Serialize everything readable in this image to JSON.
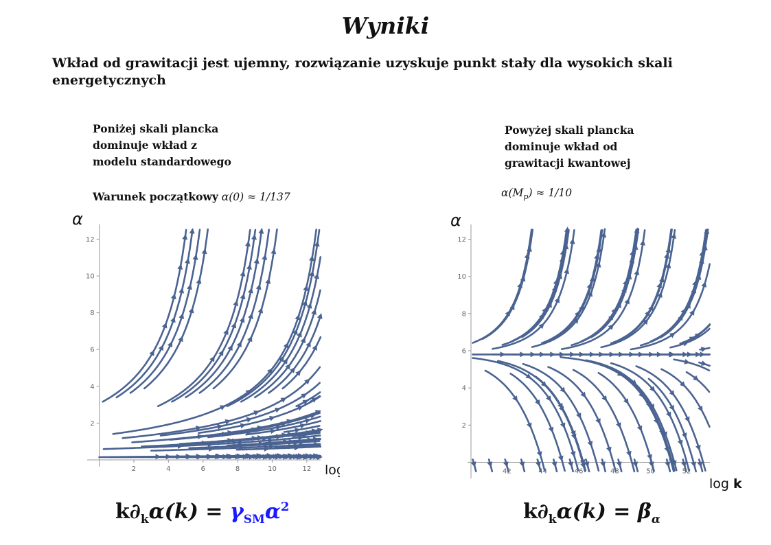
{
  "slide": {
    "title": "Wyniki",
    "subtitle": "Wkład od grawitacji jest ujemny, rozwiązanie uzyskuje punkt stały dla wysokich skali energetycznych"
  },
  "left_panel": {
    "note_lines": [
      "Poniżej skali plancka",
      "dominuje wkład z",
      "modelu standardowego"
    ],
    "condition_label": "Warunek początkowy",
    "condition_formula": "α(0) ≈ 1/137",
    "equation_lhs": "k∂",
    "equation_sub": "k",
    "equation_mid": "α(k) = ",
    "equation_gamma": "γ",
    "equation_gamma_sub": "SM",
    "equation_alpha": "α",
    "equation_power": "2"
  },
  "right_panel": {
    "note_lines": [
      "Powyżej skali plancka",
      "dominuje wkład od",
      "grawitacji kwantowej"
    ],
    "condition_formula": "α(M",
    "condition_sub": "p",
    "condition_tail": ") ≈ 1/10",
    "equation_lhs": "k∂",
    "equation_sub": "k",
    "equation_mid": "α(k) = ",
    "equation_beta": "β",
    "equation_beta_sub": "α"
  },
  "colors": {
    "stream": "#4a6391",
    "axis": "#999999",
    "blue_accent": "#1a1aff"
  },
  "chart_data": [
    {
      "type": "streamplot",
      "ylabel": "α",
      "xlabel": "log k",
      "x_ticks": [
        2,
        4,
        6,
        8,
        10,
        12
      ],
      "y_ticks": [
        2,
        4,
        6,
        8,
        10,
        12
      ],
      "xlim": [
        -0.5,
        12.8
      ],
      "ylim": [
        0,
        12.5
      ],
      "flow": "dα/dlogk = γ_SM·α² (positive, increasing with α)",
      "fixed_point": null
    },
    {
      "type": "streamplot",
      "ylabel": "α",
      "xlabel": "log k",
      "x_ticks": [
        42,
        44,
        46,
        48,
        50,
        52
      ],
      "y_ticks": [
        2,
        4,
        6,
        8,
        10,
        12
      ],
      "xlim": [
        40.0,
        53.3
      ],
      "ylim": [
        -0.5,
        12.5
      ],
      "flow": "dα/dlogk = β_α with UV fixed point",
      "fixed_point": 5.8
    }
  ]
}
